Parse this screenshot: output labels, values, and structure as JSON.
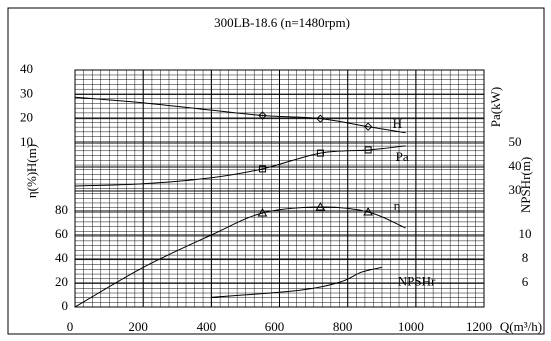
{
  "chart_data": {
    "type": "line",
    "title": "300LB-18.6 (n=1480rpm)",
    "xlabel": "Q(m³/h)",
    "xlim": [
      0,
      1200
    ],
    "xticks": [
      0,
      200,
      400,
      600,
      800,
      1000,
      1200
    ],
    "axes": {
      "y": {
        "label": "H(m)",
        "lim": [
          10,
          40
        ],
        "ticks": [
          10,
          20,
          30,
          40
        ]
      },
      "y2": {
        "label": "η(%)",
        "lim": [
          0,
          80
        ],
        "ticks": [
          0,
          20,
          40,
          60,
          80
        ]
      },
      "y3": {
        "label": "Pa(kW)",
        "lim": [
          30,
          50
        ],
        "ticks": [
          30,
          40,
          50
        ]
      },
      "y4": {
        "label": "NPSHr(m)",
        "lim": [
          6,
          10
        ],
        "ticks": [
          6,
          8,
          10
        ]
      }
    },
    "grid": true,
    "series": [
      {
        "name": "H",
        "axis": "y",
        "color": "#000000",
        "marker": "diamond",
        "x": [
          0,
          200,
          400,
          550,
          720,
          860,
          970
        ],
        "values": [
          28.8,
          26.5,
          23.5,
          21.3,
          20,
          16.7,
          14.2
        ],
        "points": {
          "x": [
            550,
            720,
            860
          ],
          "values": [
            21.3,
            20,
            16.7
          ]
        }
      },
      {
        "name": "Pa",
        "axis": "y3",
        "color": "#000000",
        "marker": "square",
        "x": [
          0,
          200,
          400,
          550,
          720,
          860,
          970
        ],
        "values": [
          32.1,
          33,
          35.5,
          39.2,
          45.8,
          47.1,
          48.8
        ],
        "points": {
          "x": [
            550,
            720,
            860
          ],
          "values": [
            39.2,
            45.8,
            47.1
          ]
        }
      },
      {
        "name": "η",
        "axis": "y2",
        "color": "#000000",
        "marker": "triangle",
        "x": [
          0,
          200,
          400,
          550,
          720,
          860,
          970
        ],
        "values": [
          0,
          33,
          60,
          78.3,
          83.3,
          79.2,
          65.8
        ],
        "points": {
          "x": [
            550,
            720,
            860
          ],
          "values": [
            78.3,
            83.3,
            79.2
          ]
        }
      },
      {
        "name": "NPSHr",
        "axis": "y4",
        "color": "#000000",
        "x": [
          400,
          660,
          780,
          840,
          900
        ],
        "values": [
          4.8,
          5.4,
          6.1,
          6.9,
          7.3
        ]
      }
    ]
  }
}
